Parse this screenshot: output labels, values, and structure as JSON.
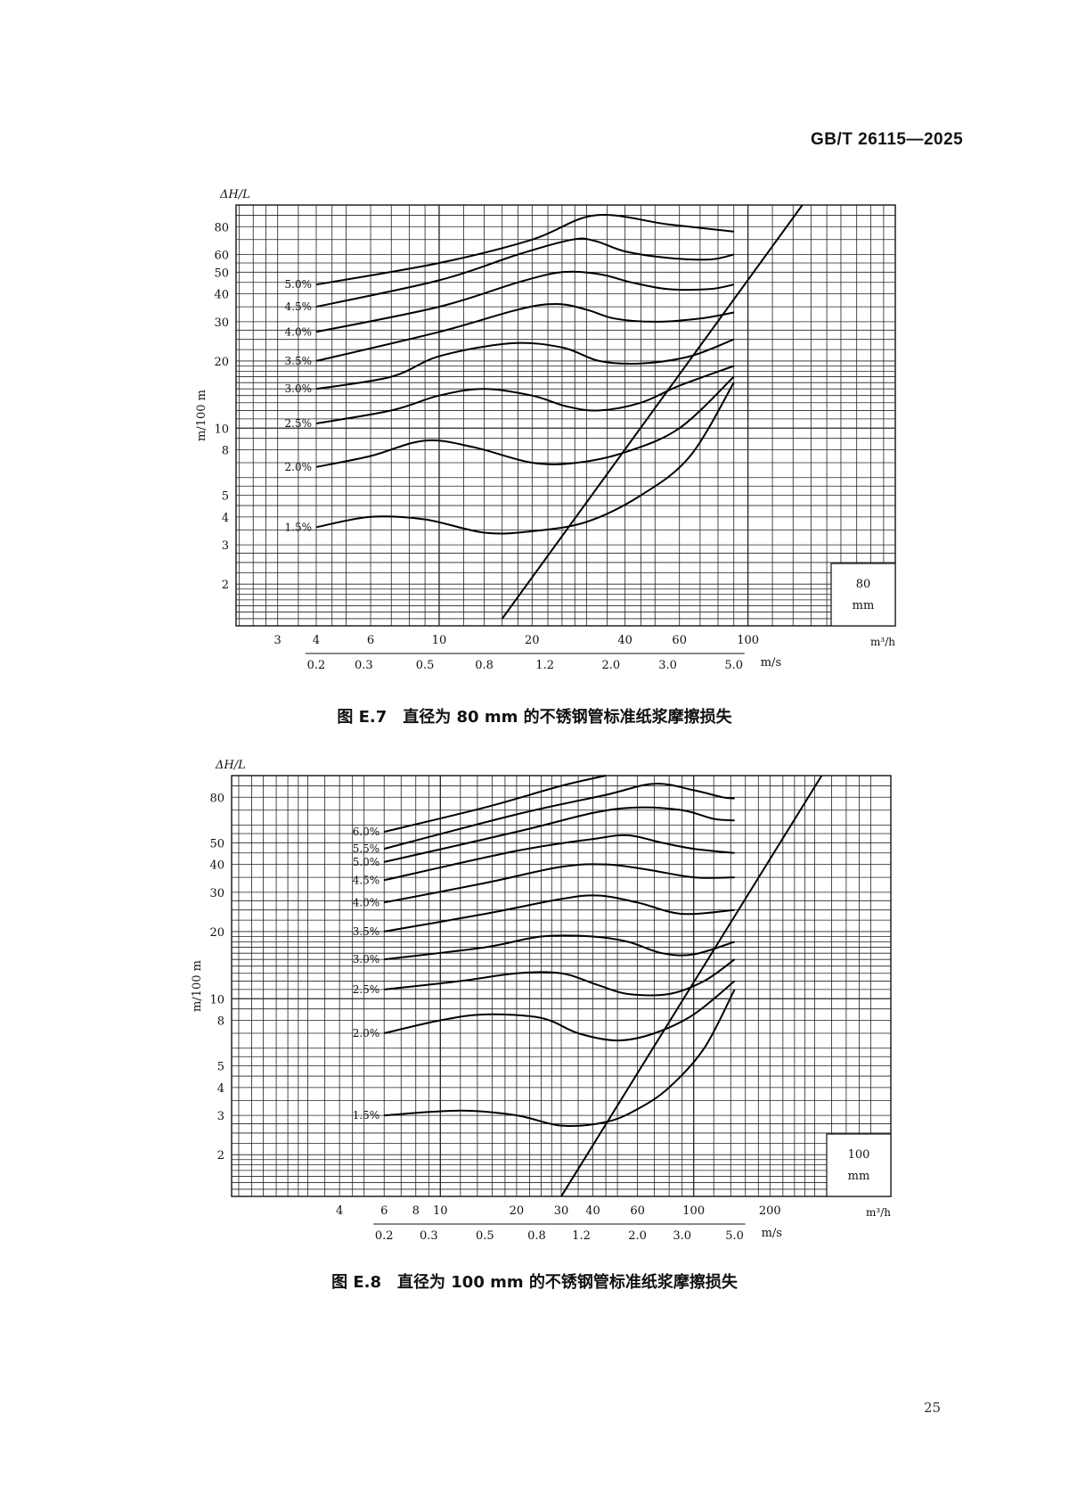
{
  "header": {
    "doc_code": "GB/T 26115—2025"
  },
  "page_number": "25",
  "chart_data": [
    {
      "type": "line",
      "title": "图 E.7　直径为 80 mm 的不锈钢管标准纸浆摩擦损失",
      "ylabel": "m/100 m",
      "ylabel_top": "ΔH/L",
      "y_scale": "log",
      "ylim": [
        1.3,
        100
      ],
      "y_ticks": [
        2,
        3,
        4,
        5,
        8,
        10,
        20,
        30,
        40,
        50,
        60,
        80
      ],
      "x_scale": "log",
      "xlim": [
        2.2,
        300
      ],
      "xlabel": "m³/h",
      "x_ticks": [
        3,
        4,
        6,
        10,
        20,
        40,
        60,
        100
      ],
      "x2label": "m/s",
      "x2_ticks": [
        "0.2",
        "0.3",
        "0.5",
        "0.8",
        "1.2",
        "2.0",
        "3.0",
        "5.0"
      ],
      "x2_positions": [
        4,
        5.7,
        9,
        14,
        22,
        36,
        55,
        90
      ],
      "box": {
        "line1": "80",
        "line2": "mm"
      },
      "series": [
        {
          "name": "5.0%",
          "points": [
            [
              4,
              44
            ],
            [
              10,
              55
            ],
            [
              20,
              70
            ],
            [
              32,
              90
            ],
            [
              55,
              82
            ],
            [
              90,
              76
            ]
          ]
        },
        {
          "name": "4.5%",
          "points": [
            [
              4,
              35
            ],
            [
              10,
              46
            ],
            [
              18,
              60
            ],
            [
              27,
              70
            ],
            [
              32,
              69
            ],
            [
              40,
              62
            ],
            [
              55,
              58
            ],
            [
              75,
              57
            ],
            [
              90,
              60
            ]
          ]
        },
        {
          "name": "4.0%",
          "points": [
            [
              4,
              27
            ],
            [
              10,
              35
            ],
            [
              18,
              45
            ],
            [
              25,
              50
            ],
            [
              33,
              49
            ],
            [
              42,
              45
            ],
            [
              55,
              42
            ],
            [
              75,
              42
            ],
            [
              90,
              44
            ]
          ]
        },
        {
          "name": "3.5%",
          "points": [
            [
              4,
              20
            ],
            [
              10,
              27
            ],
            [
              18,
              34
            ],
            [
              24,
              36
            ],
            [
              30,
              34
            ],
            [
              37,
              31
            ],
            [
              50,
              30
            ],
            [
              70,
              31
            ],
            [
              90,
              33
            ]
          ]
        },
        {
          "name": "3.0%",
          "points": [
            [
              4,
              15
            ],
            [
              7,
              17
            ],
            [
              10,
              21
            ],
            [
              17,
              24
            ],
            [
              25,
              23
            ],
            [
              33,
              20
            ],
            [
              45,
              19.5
            ],
            [
              65,
              21
            ],
            [
              90,
              25
            ]
          ]
        },
        {
          "name": "2.5%",
          "points": [
            [
              4,
              10.5
            ],
            [
              7,
              12
            ],
            [
              10,
              14
            ],
            [
              14,
              15
            ],
            [
              20,
              14
            ],
            [
              26,
              12.5
            ],
            [
              33,
              12
            ],
            [
              45,
              13
            ],
            [
              60,
              15.5
            ],
            [
              90,
              19
            ]
          ]
        },
        {
          "name": "2.0%",
          "points": [
            [
              4,
              6.7
            ],
            [
              6,
              7.5
            ],
            [
              9,
              8.8
            ],
            [
              13,
              8.2
            ],
            [
              20,
              7
            ],
            [
              28,
              7
            ],
            [
              40,
              7.8
            ],
            [
              60,
              10
            ],
            [
              90,
              17
            ]
          ]
        },
        {
          "name": "1.5%",
          "points": [
            [
              4,
              3.6
            ],
            [
              6,
              4
            ],
            [
              9,
              3.9
            ],
            [
              14,
              3.4
            ],
            [
              20,
              3.45
            ],
            [
              30,
              3.8
            ],
            [
              45,
              5
            ],
            [
              65,
              7.5
            ],
            [
              90,
              16
            ]
          ]
        }
      ],
      "critical_line": [
        [
          16,
          1.4
        ],
        [
          150,
          100
        ]
      ]
    },
    {
      "type": "line",
      "title": "图 E.8　直径为 100 mm 的不锈钢管标准纸浆摩擦损失",
      "ylabel": "m/100 m",
      "ylabel_top": "ΔH/L",
      "y_scale": "log",
      "ylim": [
        1.3,
        100
      ],
      "y_ticks": [
        2,
        3,
        4,
        5,
        8,
        10,
        20,
        30,
        40,
        50,
        80
      ],
      "x_scale": "log",
      "xlim": [
        1.5,
        600
      ],
      "xlabel": "m³/h",
      "x_ticks": [
        4,
        6,
        8,
        10,
        20,
        30,
        40,
        60,
        100,
        200
      ],
      "x2label": "m/s",
      "x2_ticks": [
        "0.2",
        "0.3",
        "0.5",
        "0.8",
        "1.2",
        "2.0",
        "3.0",
        "5.0"
      ],
      "x2_positions": [
        6,
        9,
        15,
        24,
        36,
        60,
        90,
        145
      ],
      "box": {
        "line1": "100",
        "line2": "mm"
      },
      "series": [
        {
          "name": "6.0%",
          "points": [
            [
              6,
              56
            ],
            [
              15,
              72
            ],
            [
              30,
              90
            ],
            [
              45,
              100
            ]
          ]
        },
        {
          "name": "5.5%",
          "points": [
            [
              6,
              47
            ],
            [
              20,
              67
            ],
            [
              45,
              82
            ],
            [
              70,
              92
            ],
            [
              100,
              86
            ],
            [
              130,
              80
            ],
            [
              145,
              79
            ]
          ]
        },
        {
          "name": "5.0%",
          "points": [
            [
              6,
              41
            ],
            [
              20,
              56
            ],
            [
              40,
              68
            ],
            [
              60,
              72
            ],
            [
              90,
              70
            ],
            [
              120,
              64
            ],
            [
              145,
              63
            ]
          ]
        },
        {
          "name": "4.5%",
          "points": [
            [
              6,
              34
            ],
            [
              20,
              46
            ],
            [
              40,
              52
            ],
            [
              55,
              54
            ],
            [
              75,
              50
            ],
            [
              100,
              47
            ],
            [
              145,
              45
            ]
          ]
        },
        {
          "name": "4.0%",
          "points": [
            [
              6,
              27
            ],
            [
              15,
              33
            ],
            [
              30,
              39
            ],
            [
              45,
              40
            ],
            [
              65,
              38
            ],
            [
              100,
              35
            ],
            [
              145,
              35
            ]
          ]
        },
        {
          "name": "3.5%",
          "points": [
            [
              6,
              20
            ],
            [
              15,
              24
            ],
            [
              30,
              28
            ],
            [
              42,
              29
            ],
            [
              60,
              27
            ],
            [
              90,
              24
            ],
            [
              145,
              25
            ]
          ]
        },
        {
          "name": "3.0%",
          "points": [
            [
              6,
              15
            ],
            [
              15,
              17
            ],
            [
              25,
              19
            ],
            [
              40,
              19
            ],
            [
              55,
              18
            ],
            [
              75,
              16
            ],
            [
              100,
              15.8
            ],
            [
              145,
              18
            ]
          ]
        },
        {
          "name": "2.5%",
          "points": [
            [
              6,
              11
            ],
            [
              12,
              12
            ],
            [
              20,
              13
            ],
            [
              30,
              13
            ],
            [
              42,
              11.5
            ],
            [
              55,
              10.5
            ],
            [
              80,
              10.5
            ],
            [
              110,
              12
            ],
            [
              145,
              15
            ]
          ]
        },
        {
          "name": "2.0%",
          "points": [
            [
              6,
              7
            ],
            [
              10,
              8
            ],
            [
              15,
              8.5
            ],
            [
              25,
              8.2
            ],
            [
              35,
              7
            ],
            [
              50,
              6.5
            ],
            [
              70,
              7
            ],
            [
              100,
              8.5
            ],
            [
              145,
              12
            ]
          ]
        },
        {
          "name": "1.5%",
          "points": [
            [
              6,
              3
            ],
            [
              12,
              3.15
            ],
            [
              20,
              3
            ],
            [
              30,
              2.7
            ],
            [
              45,
              2.8
            ],
            [
              60,
              3.2
            ],
            [
              80,
              4
            ],
            [
              110,
              6
            ],
            [
              145,
              11
            ]
          ]
        }
      ],
      "critical_line": [
        [
          30,
          1.3
        ],
        [
          320,
          100
        ]
      ]
    }
  ]
}
